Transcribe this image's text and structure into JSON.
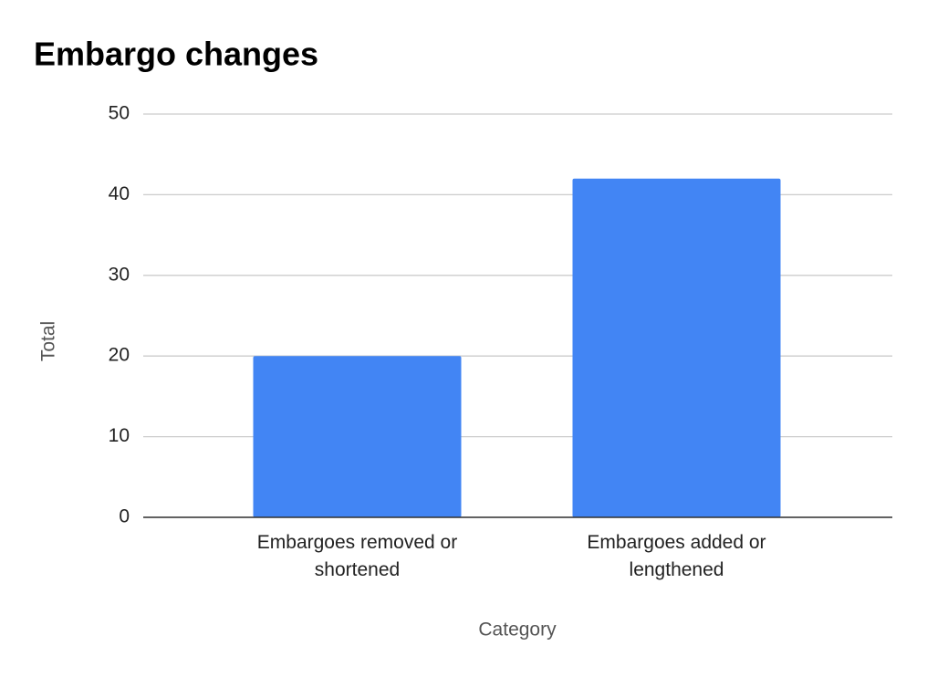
{
  "chart_data": {
    "type": "bar",
    "title": "Embargo changes",
    "categories": [
      "Embargoes removed or shortened",
      "Embargoes added or lengthened"
    ],
    "values": [
      20,
      42
    ],
    "color": "#4285f4",
    "ylim": [
      0,
      50
    ],
    "yticks": [
      0,
      10,
      20,
      30,
      40,
      50
    ],
    "grid": true,
    "x_label": "Category",
    "y_label": "Total"
  }
}
